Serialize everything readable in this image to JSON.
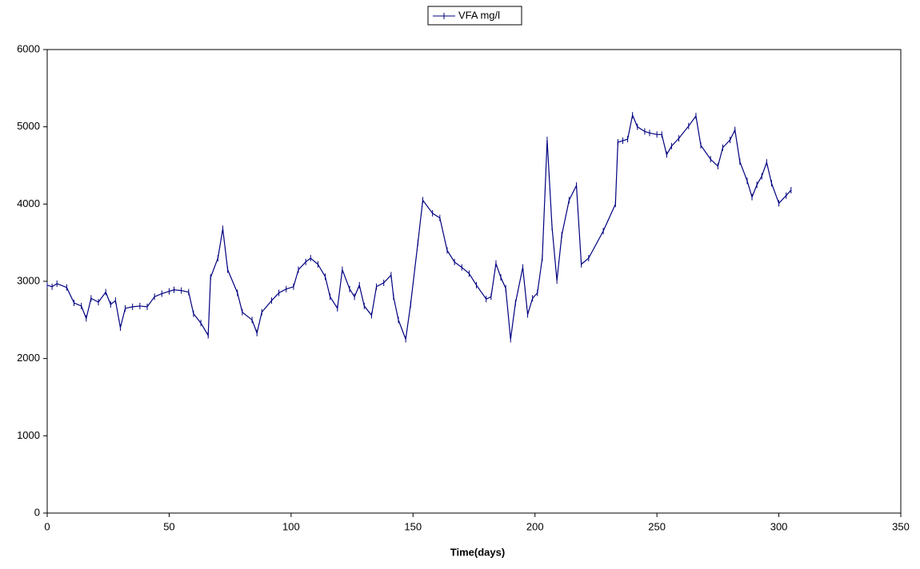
{
  "chart_data": {
    "type": "line",
    "x_label": "Time(days)",
    "xlim": [
      0,
      350
    ],
    "xticks": [
      0,
      50,
      100,
      150,
      200,
      250,
      300,
      350
    ],
    "ylim": [
      0,
      6000
    ],
    "yticks": [
      0,
      1000,
      2000,
      3000,
      4000,
      5000,
      6000
    ],
    "grid": false,
    "legend": "top",
    "series": [
      {
        "name": "VFA mg/l",
        "color": "#000080",
        "x": [
          0,
          2,
          4,
          8,
          11,
          14,
          16,
          18,
          21,
          24,
          26,
          28,
          30,
          32,
          35,
          38,
          41,
          44,
          47,
          50,
          52,
          55,
          58,
          60,
          63,
          66,
          67,
          70,
          72,
          74,
          78,
          80,
          84,
          86,
          88,
          92,
          95,
          98,
          101,
          103,
          106,
          108,
          111,
          114,
          116,
          119,
          121,
          124,
          126,
          128,
          130,
          133,
          135,
          138,
          141,
          142,
          144,
          147,
          149,
          152,
          154,
          158,
          161,
          164,
          167,
          170,
          173,
          176,
          180,
          182,
          184,
          186,
          188,
          190,
          192,
          195,
          197,
          199,
          201,
          203,
          205,
          207,
          209,
          211,
          214,
          217,
          219,
          222,
          228,
          233,
          234,
          236,
          238,
          240,
          242,
          245,
          247,
          250,
          252,
          254,
          256,
          259,
          263,
          266,
          268,
          272,
          275,
          277,
          280,
          282,
          284,
          287,
          289,
          291,
          293,
          295,
          297,
          300,
          303,
          305
        ],
        "values": [
          2950,
          2930,
          2970,
          2920,
          2720,
          2680,
          2520,
          2780,
          2730,
          2860,
          2700,
          2750,
          2400,
          2650,
          2670,
          2680,
          2670,
          2800,
          2840,
          2870,
          2890,
          2880,
          2860,
          2580,
          2460,
          2300,
          3050,
          3300,
          3680,
          3150,
          2850,
          2600,
          2500,
          2330,
          2600,
          2750,
          2850,
          2900,
          2930,
          3150,
          3250,
          3300,
          3220,
          3060,
          2800,
          2650,
          3150,
          2900,
          2800,
          2950,
          2680,
          2560,
          2930,
          2980,
          3080,
          2800,
          2500,
          2250,
          2700,
          3500,
          4050,
          3880,
          3820,
          3400,
          3250,
          3180,
          3100,
          2950,
          2770,
          2800,
          3230,
          3050,
          2910,
          2250,
          2720,
          3180,
          2570,
          2780,
          2850,
          3300,
          4830,
          3700,
          3010,
          3600,
          4050,
          4240,
          3220,
          3300,
          3650,
          4000,
          4800,
          4820,
          4840,
          5150,
          5000,
          4940,
          4920,
          4900,
          4900,
          4640,
          4750,
          4850,
          5010,
          5140,
          4760,
          4580,
          4490,
          4730,
          4830,
          4960,
          4550,
          4300,
          4090,
          4250,
          4360,
          4540,
          4270,
          4010,
          4110,
          4180
        ]
      }
    ]
  }
}
